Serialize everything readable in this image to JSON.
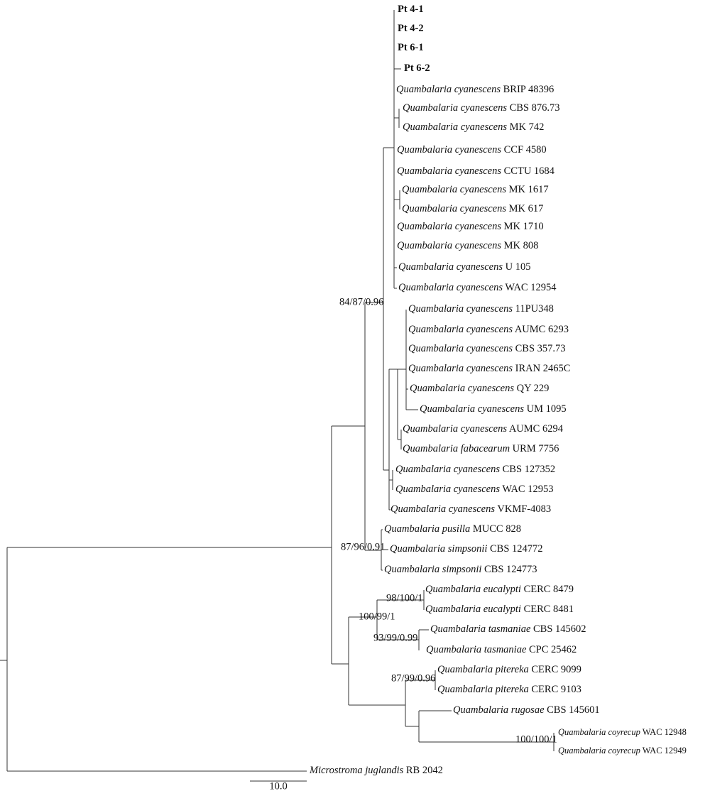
{
  "taxa": [
    {
      "strain": "Pt 4-1"
    },
    {
      "strain": "Pt 4-2"
    },
    {
      "strain": "Pt 6-1"
    },
    {
      "strain": "Pt 6-2"
    },
    {
      "genus": "Quambalaria",
      "species": "cyanescens",
      "strain": "BRIP 48396"
    },
    {
      "genus": "Quambalaria",
      "species": "cyanescens",
      "strain": "CBS 876.73"
    },
    {
      "genus": "Quambalaria",
      "species": "cyanescens",
      "strain": "MK 742"
    },
    {
      "genus": "Quambalaria",
      "species": "cyanescens",
      "strain": "CCF 4580"
    },
    {
      "genus": "Quambalaria",
      "species": "cyanescens",
      "strain": "CCTU 1684"
    },
    {
      "genus": "Quambalaria",
      "species": "cyanescens",
      "strain": "MK 1617"
    },
    {
      "genus": "Quambalaria",
      "species": "cyanescens",
      "strain": "MK 617"
    },
    {
      "genus": "Quambalaria",
      "species": "cyanescens",
      "strain": "MK 1710"
    },
    {
      "genus": "Quambalaria",
      "species": "cyanescens",
      "strain": "MK 808"
    },
    {
      "genus": "Quambalaria",
      "species": "cyanescens",
      "strain": "U 105"
    },
    {
      "genus": "Quambalaria",
      "species": "cyanescens",
      "strain": "WAC 12954"
    },
    {
      "genus": "Quambalaria",
      "species": "cyanescens",
      "strain": "11PU348"
    },
    {
      "genus": "Quambalaria",
      "species": "cyanescens",
      "strain": "AUMC 6293"
    },
    {
      "genus": "Quambalaria",
      "species": "cyanescens",
      "strain": "CBS 357.73"
    },
    {
      "genus": "Quambalaria",
      "species": "cyanescens",
      "strain": "IRAN 2465C"
    },
    {
      "genus": "Quambalaria",
      "species": "cyanescens",
      "strain": "QY 229"
    },
    {
      "genus": "Quambalaria",
      "species": "cyanescens",
      "strain": "UM 1095"
    },
    {
      "genus": "Quambalaria",
      "species": "cyanescens",
      "strain": "AUMC 6294"
    },
    {
      "genus": "Quambalaria",
      "species": "fabacearum",
      "strain": "URM 7756"
    },
    {
      "genus": "Quambalaria",
      "species": "cyanescens",
      "strain": "CBS 127352"
    },
    {
      "genus": "Quambalaria",
      "species": "cyanescens",
      "strain": "WAC 12953"
    },
    {
      "genus": "Quambalaria",
      "species": "cyanescens",
      "strain": "VKMF-4083"
    },
    {
      "genus": "Quambalaria",
      "species": "pusilla",
      "strain": "MUCC 828"
    },
    {
      "genus": "Quambalaria",
      "species": "simpsonii",
      "strain": "CBS 124772"
    },
    {
      "genus": "Quambalaria",
      "species": "simpsonii",
      "strain": "CBS 124773"
    },
    {
      "genus": "Quambalaria",
      "species": "eucalypti",
      "strain": "CERC 8479"
    },
    {
      "genus": "Quambalaria",
      "species": "eucalypti",
      "strain": "CERC 8481"
    },
    {
      "genus": "Quambalaria",
      "species": "tasmaniae",
      "strain": "CBS 145602"
    },
    {
      "genus": "Quambalaria",
      "species": "tasmaniae",
      "strain": "CPC 25462"
    },
    {
      "genus": "Quambalaria",
      "species": "pitereka",
      "strain": "CERC 9099"
    },
    {
      "genus": "Quambalaria",
      "species": "pitereka",
      "strain": "CERC 9103"
    },
    {
      "genus": "Quambalaria",
      "species": "rugosae",
      "strain": "CBS 145601"
    },
    {
      "genus": "Quambalaria",
      "species": "coyrecup",
      "strain": "WAC 12948"
    },
    {
      "genus": "Quambalaria",
      "species": "coyrecup",
      "strain": "WAC 12949"
    },
    {
      "genus": "Microstroma",
      "species": "juglandis",
      "strain": "RB 2042"
    }
  ],
  "support": [
    "84/87/0.96",
    "87/96/0.91",
    "98/100/1",
    "100/99/1",
    "93/99/0.99",
    "87/99/0.96",
    "100/100/1"
  ],
  "scale": "10.0"
}
